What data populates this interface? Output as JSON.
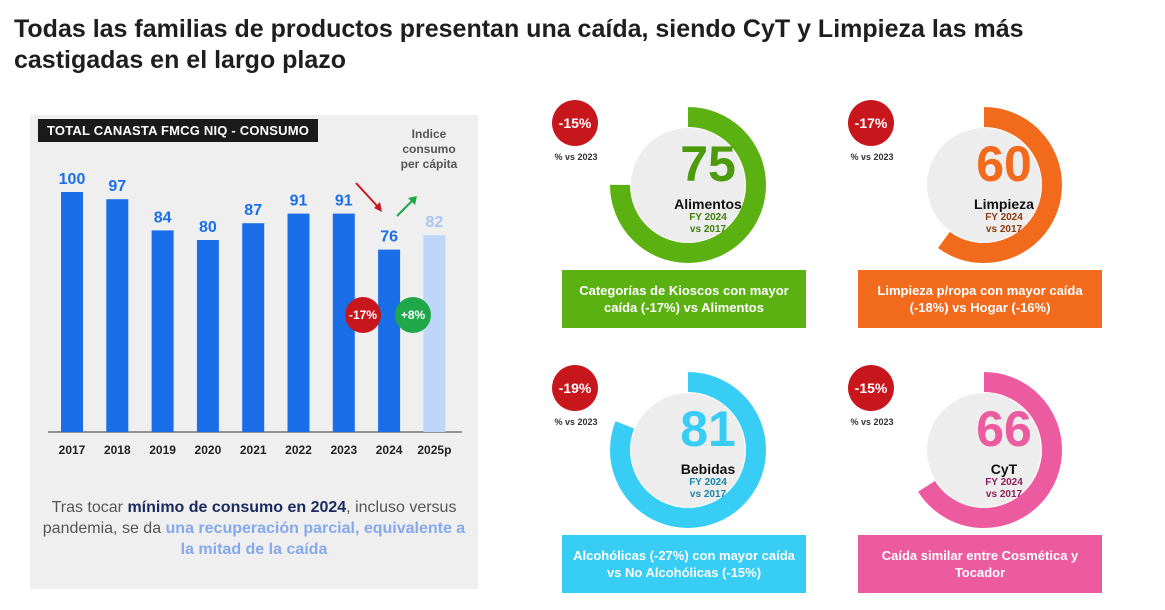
{
  "headline": "Todas las familias de productos presentan una caída, siendo CyT y Limpieza las más castigadas en el largo plazo",
  "left_panel": {
    "tag": "TOTAL CANASTA FMCG NIQ - CONSUMO",
    "index_note": "Indice consumo per cápita",
    "badge_down": "-17%",
    "badge_up": "+8%",
    "note_part1": "Tras tocar ",
    "note_strong": "mínimo de consumo en 2024",
    "note_part2": ", incluso versus pandemia, se da ",
    "note_accent": "una recuperación parcial, equivalente a la mitad de la caída"
  },
  "chart_data": {
    "type": "bar",
    "title": "TOTAL CANASTA FMCG NIQ - CONSUMO",
    "ylabel": "Indice consumo per cápita",
    "categories": [
      "2017",
      "2018",
      "2019",
      "2020",
      "2021",
      "2022",
      "2023",
      "2024",
      "2025p"
    ],
    "values": [
      100,
      97,
      84,
      80,
      87,
      91,
      91,
      76,
      82
    ],
    "projected": [
      false,
      false,
      false,
      false,
      false,
      false,
      false,
      false,
      true
    ],
    "ylim": [
      0,
      100
    ],
    "colors": {
      "actual": "#1a6fe8",
      "projected": "#bdd6f9",
      "label_actual": "#1a6fe8",
      "label_projected": "#a9c6f3"
    },
    "annotations": [
      {
        "label": "-17%",
        "from": "2023",
        "to": "2024",
        "color": "#c8161d"
      },
      {
        "label": "+8%",
        "from": "2024",
        "to": "2025p",
        "color": "#1ea84a"
      }
    ]
  },
  "families": [
    {
      "id": "alimentos",
      "name": "Alimentos",
      "value": "75",
      "pct": "-15%",
      "pct_note": "% vs 2023",
      "sub1": "FY 2024",
      "sub2": "vs 2017",
      "color": "#5bb111",
      "value_color": "#4c9b0c",
      "sub_color": "#3f7f0a",
      "fill": 0.75,
      "caption": "Categorías de Kioscos con mayor caída (-17%) vs Alimentos"
    },
    {
      "id": "limpieza",
      "name": "Limpieza",
      "value": "60",
      "pct": "-17%",
      "pct_note": "% vs 2023",
      "sub1": "FY 2024",
      "sub2": "vs 2017",
      "color": "#f26a1b",
      "value_color": "#f26a1b",
      "sub_color": "#8b3a0e",
      "fill": 0.6,
      "caption": "Limpieza p/ropa con mayor caída (-18%) vs Hogar (-16%)"
    },
    {
      "id": "bebidas",
      "name": "Bebidas",
      "value": "81",
      "pct": "-19%",
      "pct_note": "% vs 2023",
      "sub1": "FY 2024",
      "sub2": "vs 2017",
      "color": "#38cdf5",
      "value_color": "#38cdf5",
      "sub_color": "#1785a8",
      "fill": 0.81,
      "caption": "Alcohólicas (-27%) con mayor caída vs No Alcohólicas (-15%)"
    },
    {
      "id": "cyt",
      "name": "CyT",
      "value": "66",
      "pct": "-15%",
      "pct_note": "% vs 2023",
      "sub1": "FY 2024",
      "sub2": "vs 2017",
      "color": "#ec5aa0",
      "value_color": "#ec5aa0",
      "sub_color": "#8d1f56",
      "fill": 0.66,
      "caption": "Caída similar entre Cosmética y Tocador"
    }
  ]
}
